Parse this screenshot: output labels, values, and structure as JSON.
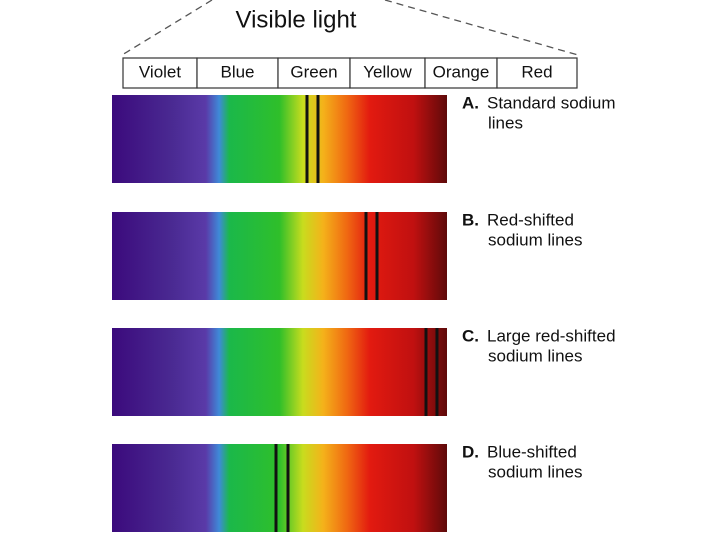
{
  "header": {
    "title": "Visible light"
  },
  "bands": [
    "Violet",
    "Blue",
    "Green",
    "Yellow",
    "Orange",
    "Red"
  ],
  "spectra": [
    {
      "letter": "A.",
      "lines": [
        "Standard sodium",
        "lines"
      ]
    },
    {
      "letter": "B.",
      "lines": [
        "Red-shifted",
        "sodium lines"
      ]
    },
    {
      "letter": "C.",
      "lines": [
        "Large red-shifted",
        "sodium lines"
      ]
    },
    {
      "letter": "D.",
      "lines": [
        "Blue-shifted",
        "sodium lines"
      ]
    }
  ]
}
